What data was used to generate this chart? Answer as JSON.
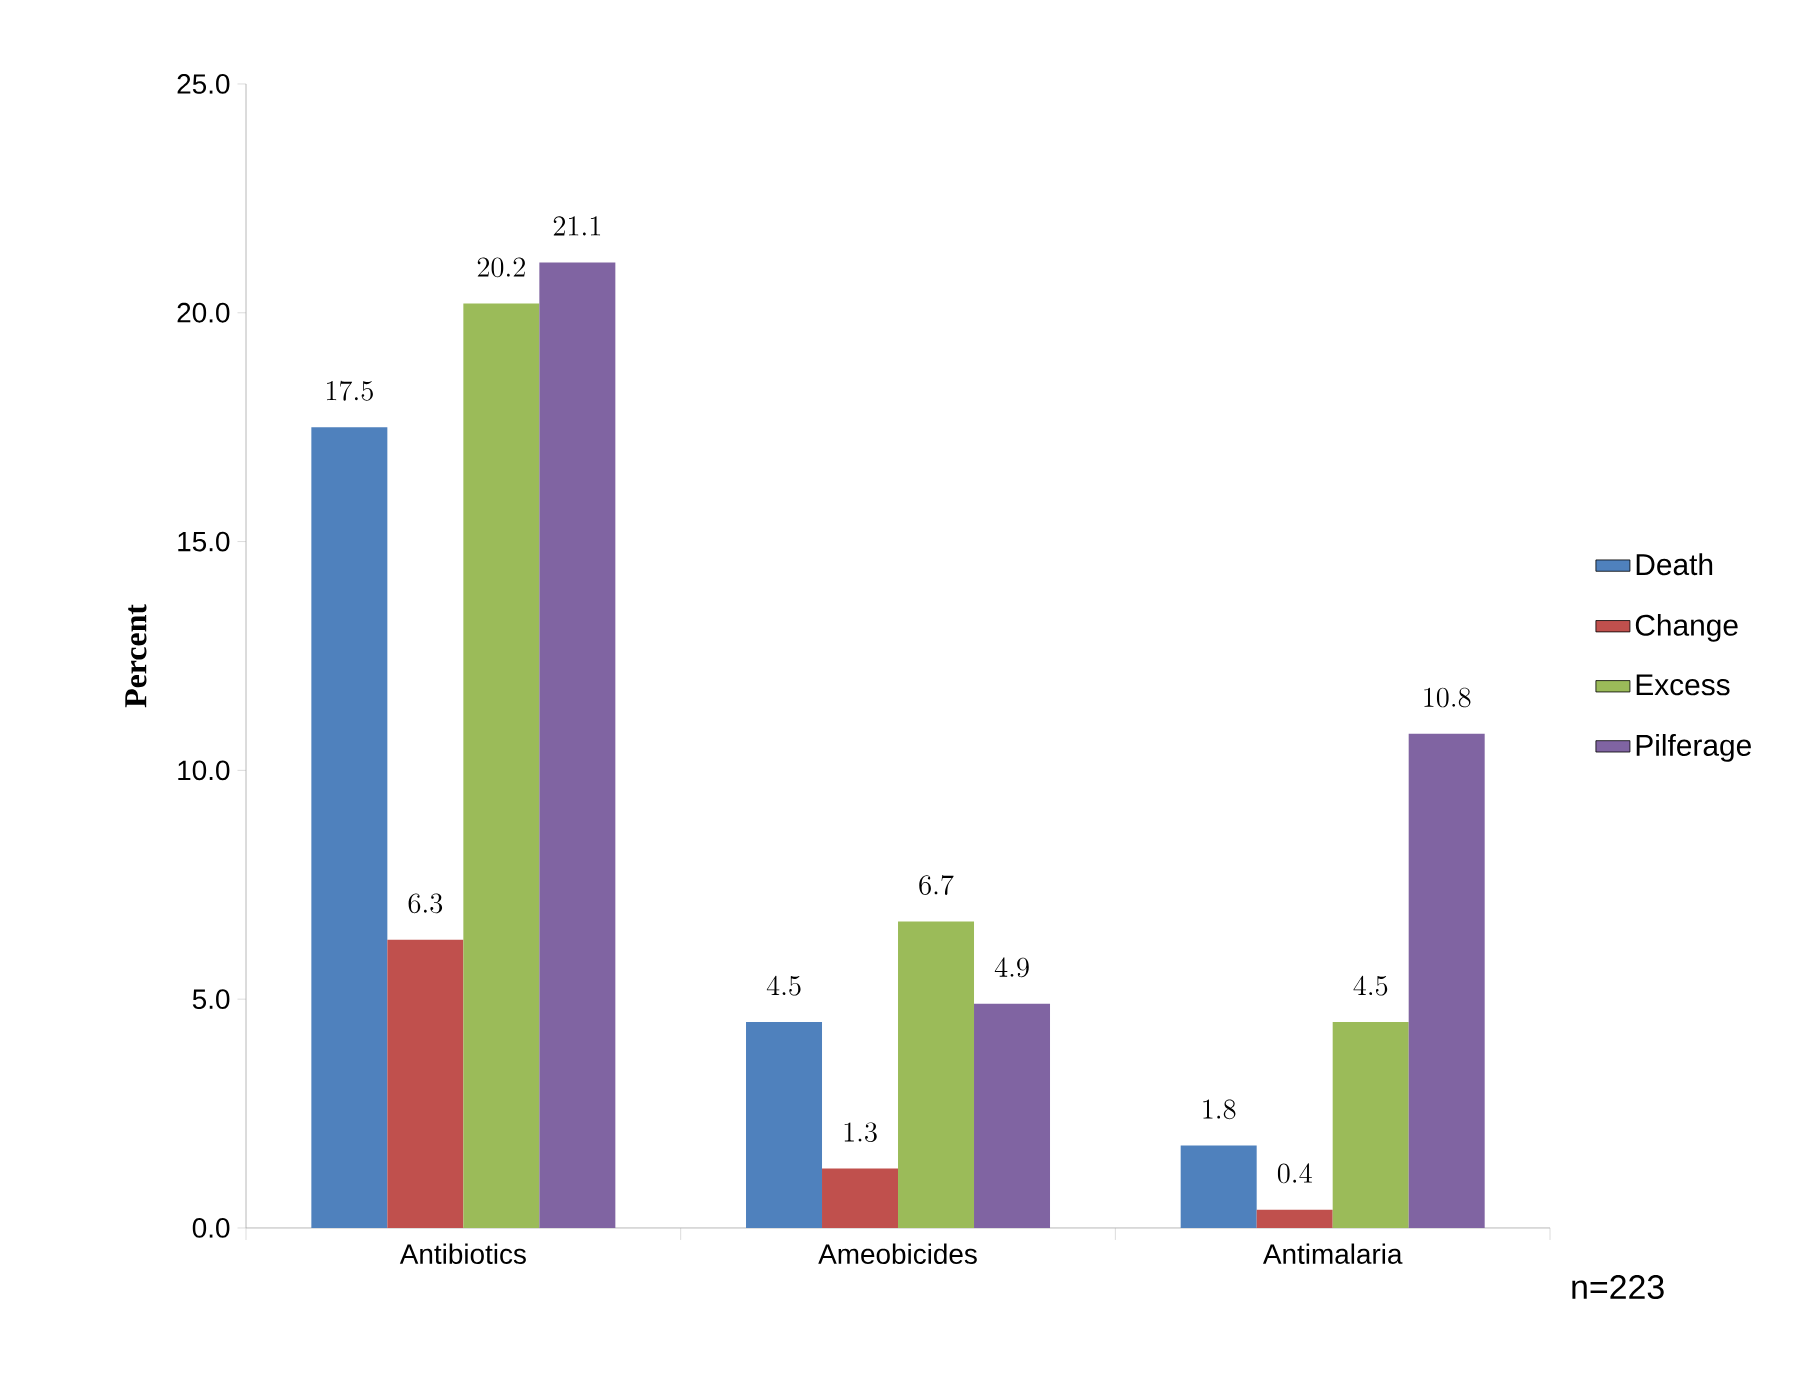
{
  "chart_data": {
    "type": "bar",
    "ylabel": "**Percent**",
    "categories": [
      "Antibiotics",
      "Ameobicides",
      "Antimalaria"
    ],
    "series": [
      {
        "name": "Death",
        "color": "#4f81bd",
        "values": [
          17.5,
          4.5,
          1.8
        ]
      },
      {
        "name": "Change",
        "color": "#c0504d",
        "values": [
          6.3,
          1.3,
          0.4
        ]
      },
      {
        "name": "Excess",
        "color": "#9bbb59",
        "values": [
          20.2,
          6.7,
          4.5
        ]
      },
      {
        "name": "Pilferage",
        "color": "#8064a2",
        "values": [
          21.1,
          4.9,
          10.8
        ]
      }
    ],
    "ylim": [
      0,
      25
    ],
    "yticks": [
      {
        "value": 0,
        "label": "0.0"
      },
      {
        "value": 5,
        "label": "5.0"
      },
      {
        "value": 10,
        "label": "10.0"
      },
      {
        "value": 15,
        "label": "15.0"
      },
      {
        "value": 20,
        "label": "20.0"
      },
      {
        "value": 25,
        "label": "25.0"
      }
    ],
    "data_labels": true,
    "legend": "right",
    "grid": false,
    "annotations": [
      "n=223"
    ]
  }
}
